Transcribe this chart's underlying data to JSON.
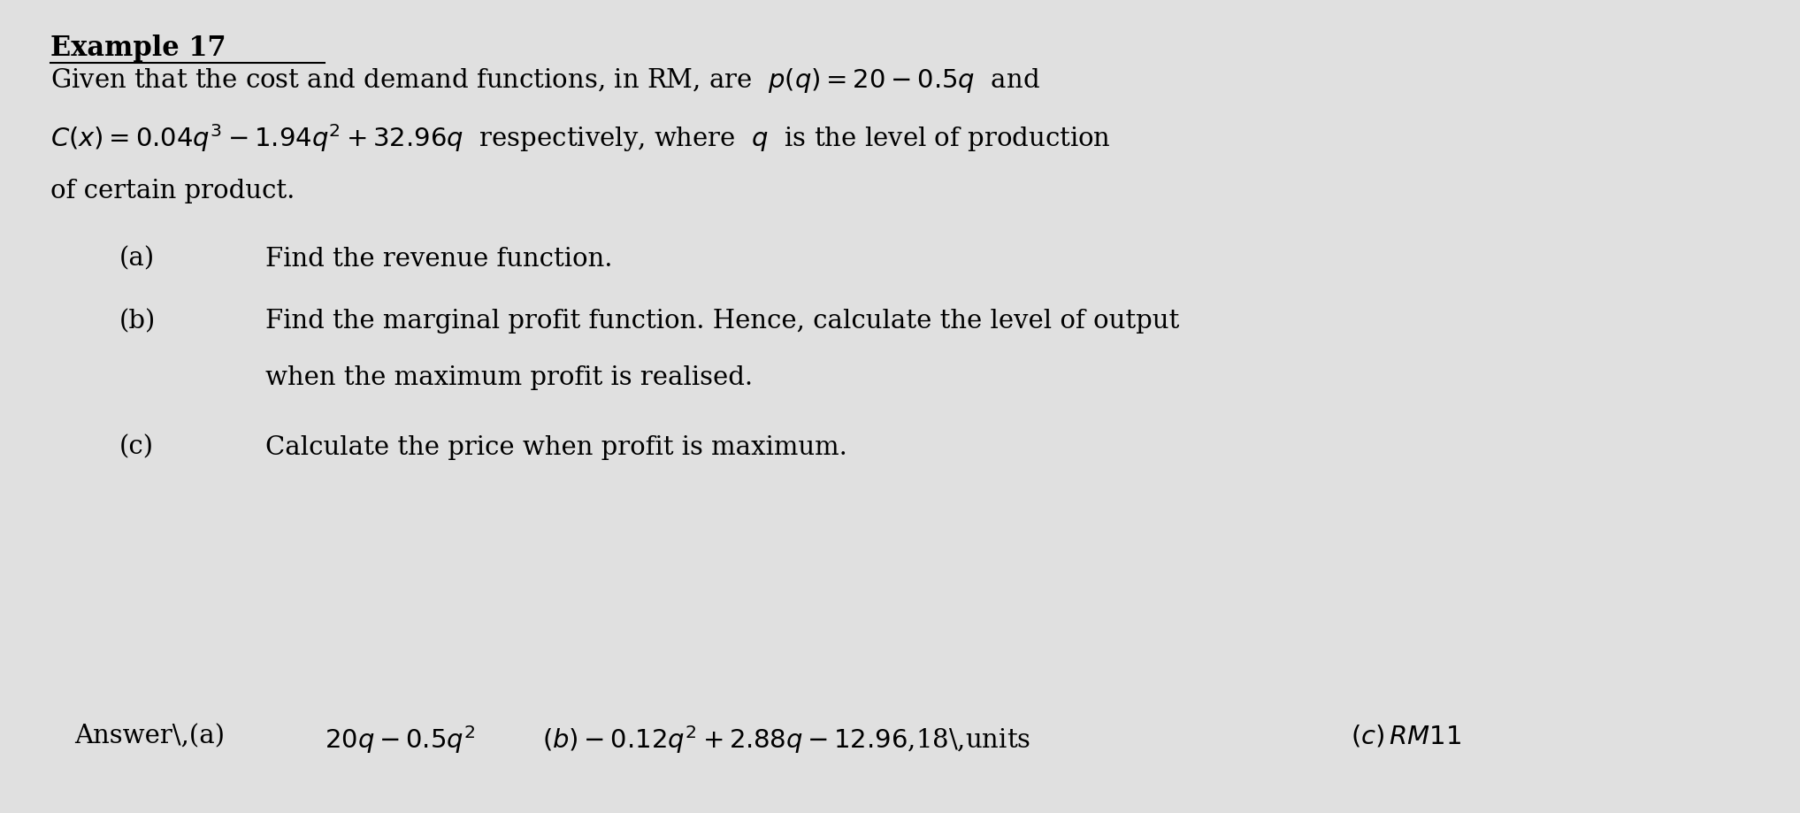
{
  "background_color": "#e0e0e0",
  "title": "Example 17",
  "line1": "Given that the cost and demand functions, in RM, are  $p(q)=20-0.5q$  and",
  "line2": "$C(x)=0.04q^3-1.94q^2+32.96q$  respectively, where  $q$  is the level of production",
  "line3": "of certain product.",
  "part_a_label": "(a)",
  "part_a_text": "Find the revenue function.",
  "part_b_label": "(b)",
  "part_b_text": "Find the marginal profit function. Hence, calculate the level of output",
  "part_b_text2": "when the maximum profit is realised.",
  "part_c_label": "(c)",
  "part_c_text": "Calculate the price when profit is maximum.",
  "font_size_title": 22,
  "font_size_body": 21,
  "font_size_answer": 21
}
